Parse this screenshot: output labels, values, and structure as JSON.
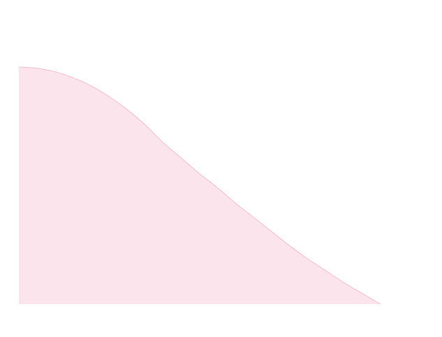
{
  "chart_data": {
    "type": "area",
    "title": "",
    "xlabel": "",
    "ylabel": "",
    "grid": false,
    "legend": "none",
    "xlim": [
      0,
      1
    ],
    "ylim": [
      0,
      1
    ],
    "x": [
      0.0,
      0.05,
      0.1,
      0.15,
      0.2,
      0.25,
      0.3,
      0.35,
      0.4,
      0.45,
      0.5,
      0.55,
      0.6,
      0.65,
      0.7,
      0.75,
      0.8,
      0.85,
      0.9,
      0.95,
      1.0
    ],
    "series": [
      {
        "values": [
          1.0,
          0.995,
          0.98,
          0.955,
          0.92,
          0.875,
          0.82,
          0.755,
          0.68,
          0.615,
          0.55,
          0.49,
          0.425,
          0.365,
          0.305,
          0.245,
          0.19,
          0.14,
          0.09,
          0.045,
          0.0
        ],
        "fill": "#fce4ec",
        "stroke": "#f8bbd0"
      }
    ]
  }
}
